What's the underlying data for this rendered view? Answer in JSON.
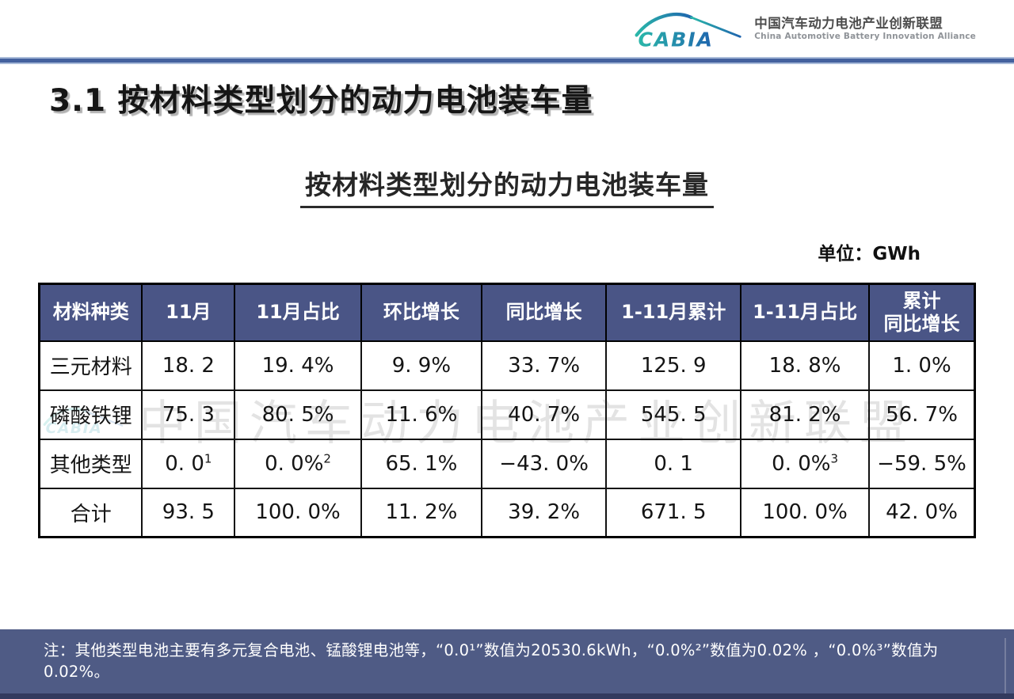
{
  "header": {
    "logo_wordmark": "CABIA",
    "org_cn": "中国汽车动力电池产业创新联盟",
    "org_en": "China Automotive Battery Innovation Alliance"
  },
  "title": "3.1 按材料类型划分的动力电池装车量",
  "table_title": "按材料类型划分的动力电池装车量",
  "unit_label": "单位：GWh",
  "watermark": {
    "logo": "CABIA",
    "text": "中国汽车动力电池产业创新联盟"
  },
  "note": "注：其他类型电池主要有多元复合电池、锰酸锂电池等，“0.0¹”数值为20530.6kWh，“0.0%²”数值为0.02% ，“0.0%³”数值为0.02%。",
  "colors": {
    "table_header_bg": "#4A5586",
    "note_bar_bg": "#4F5B85",
    "divider_blue": "#44619E",
    "bottom_strip": "#333A5E",
    "logo_teal": "#2AB7A9",
    "logo_blue": "#1F64AE"
  },
  "chart_data": {
    "type": "table",
    "title": "按材料类型划分的动力电池装车量",
    "unit": "GWh",
    "headers": [
      "材料种类",
      "11月",
      "11月占比",
      "环比增长",
      "同比增长",
      "1-11月累计",
      "1-11月占比",
      "累计\n同比增长"
    ],
    "rows": [
      [
        "三元材料",
        "18.2",
        "19.4%",
        "9.9%",
        "33.7%",
        "125.9",
        "18.8%",
        "1.0%"
      ],
      [
        "磷酸铁锂",
        "75.3",
        "80.5%",
        "11.6%",
        "40.7%",
        "545.5",
        "81.2%",
        "56.7%"
      ],
      [
        "其他类型",
        "0.0^1",
        "0.0%^2",
        "65.1%",
        "-43.0%",
        "0.1",
        "0.0%^3",
        "-59.5%"
      ],
      [
        "合计",
        "93.5",
        "100.0%",
        "11.2%",
        "39.2%",
        "671.5",
        "100.0%",
        "42.0%"
      ]
    ]
  }
}
